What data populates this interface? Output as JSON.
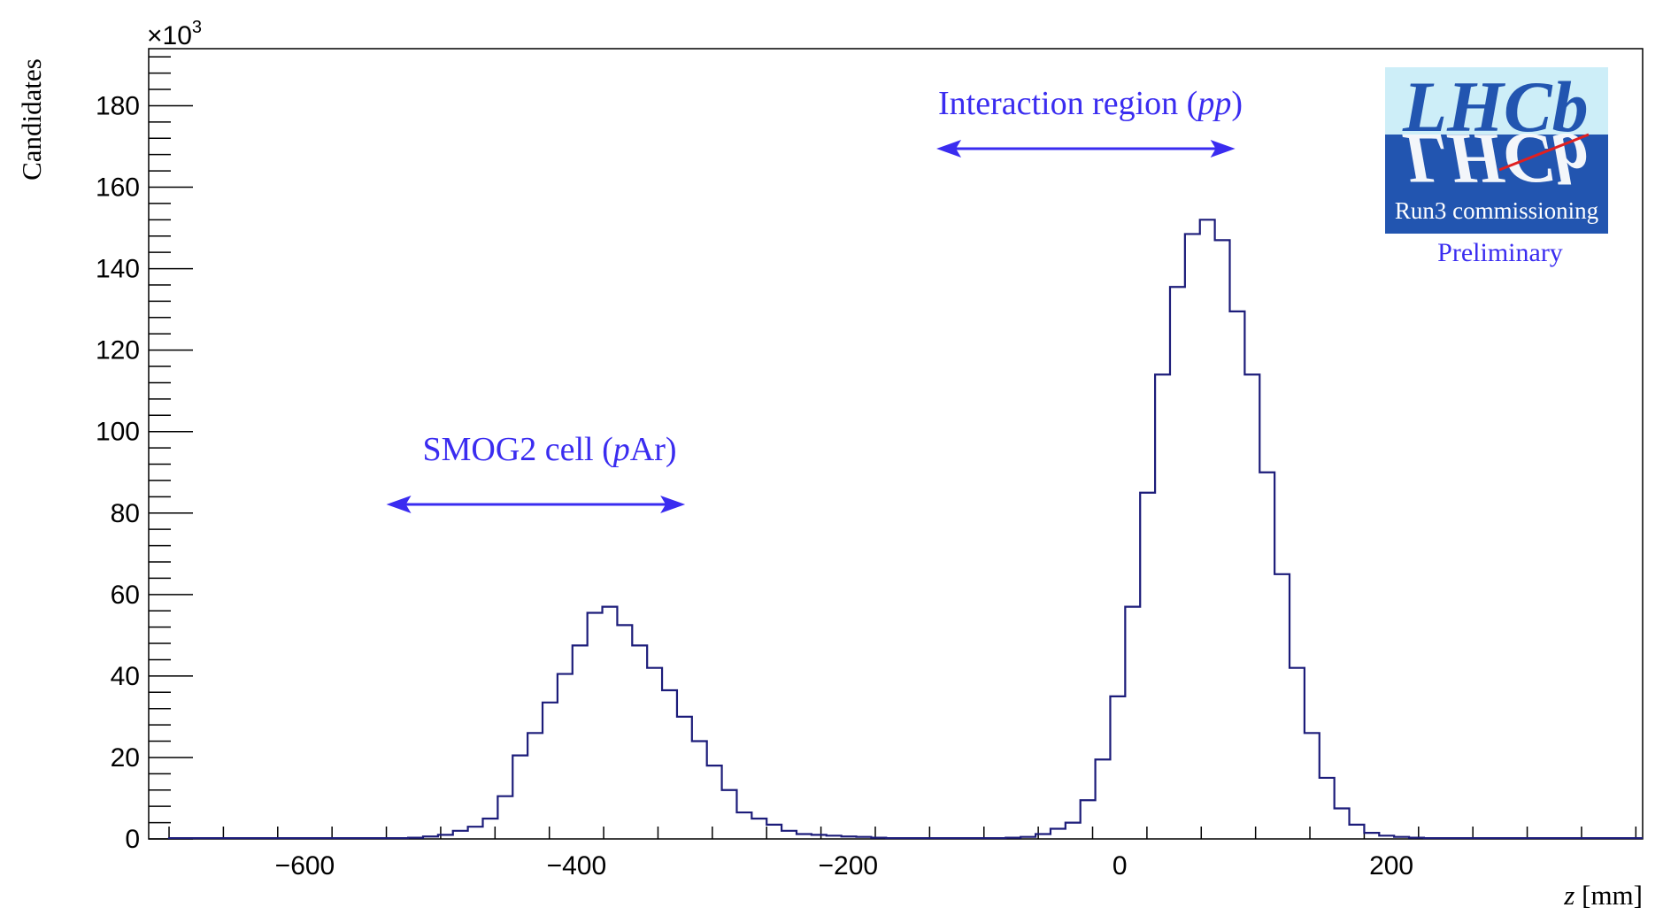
{
  "chart_data": {
    "type": "bar",
    "histogram": true,
    "xlabel_var": "z",
    "xlabel_unit": " [mm]",
    "ylabel": "Candidates",
    "y_multiplier_base": "×10",
    "y_multiplier_exp": "3",
    "xlim": [
      -715,
      385
    ],
    "ylim": [
      0,
      194
    ],
    "xticks": [
      -600,
      -400,
      -200,
      0,
      200
    ],
    "xtick_labels": [
      "−600",
      "−400",
      "−200",
      "0",
      "200"
    ],
    "yticks": [
      0,
      20,
      40,
      60,
      80,
      100,
      120,
      140,
      160,
      180
    ],
    "bin_start": -700,
    "bin_width": 11,
    "values": [
      0.2,
      0.2,
      0.2,
      0.2,
      0.2,
      0.2,
      0.2,
      0.2,
      0.2,
      0.2,
      0.2,
      0.2,
      0.2,
      0.2,
      0.2,
      0.2,
      0.3,
      0.6,
      1.0,
      2.0,
      3.0,
      5.0,
      10.5,
      20.5,
      26.0,
      33.5,
      40.5,
      47.5,
      55.5,
      57.0,
      52.5,
      47.5,
      42.0,
      36.5,
      30.0,
      24.0,
      18.0,
      12.0,
      6.5,
      5.0,
      3.5,
      2.0,
      1.2,
      1.0,
      0.8,
      0.6,
      0.5,
      0.3,
      0.2,
      0.2,
      0.2,
      0.2,
      0.2,
      0.2,
      0.2,
      0.2,
      0.3,
      0.5,
      1.2,
      2.5,
      4.0,
      9.5,
      19.5,
      35.0,
      57.0,
      85.0,
      114.0,
      135.5,
      148.5,
      152.0,
      147.0,
      129.5,
      114.0,
      90.0,
      65.0,
      42.0,
      26.0,
      15.0,
      7.5,
      3.5,
      1.5,
      0.8,
      0.5,
      0.3,
      0.2,
      0.2,
      0.2,
      0.2,
      0.2,
      0.2,
      0.2,
      0.2,
      0.2,
      0.2,
      0.2,
      0.2,
      0.2,
      0.2,
      0.2,
      0.2
    ],
    "annotations": {
      "smog": {
        "pre": "SMOG2 cell (",
        "ital": "p",
        "post": "Ar)",
        "arrow_from": -540,
        "arrow_to": -320
      },
      "ir": {
        "pre": "Interaction region (",
        "ital": "pp",
        "post": ")",
        "arrow_from": -135,
        "arrow_to": 85
      }
    },
    "logo": {
      "text": "LHCb",
      "subtitle": "Run3 commissioning",
      "status": "Preliminary"
    }
  },
  "colors": {
    "histogram_line": "#1c1c7a",
    "annotation": "#3a2cf0",
    "logo_box": "#2255b0",
    "logo_top": "#cdeef8",
    "logo_slash": "#e02020"
  }
}
